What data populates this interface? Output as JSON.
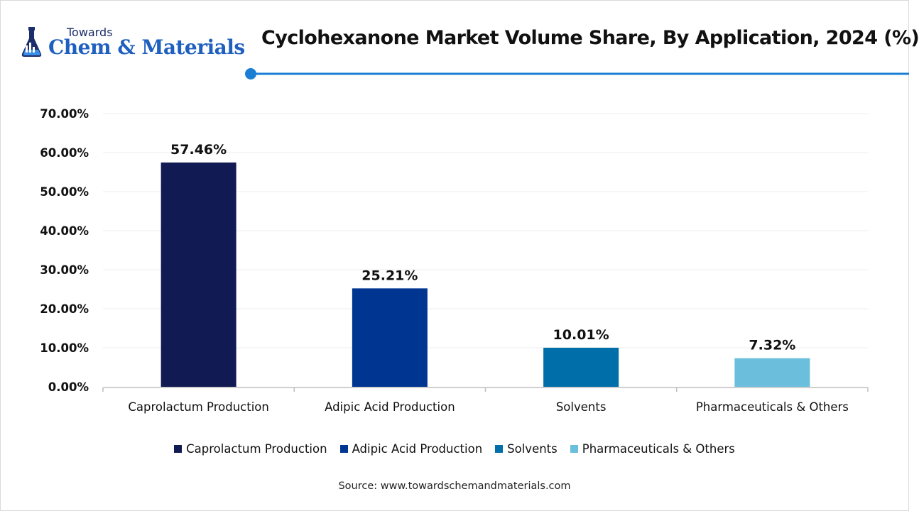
{
  "brand": {
    "logo_small": "Towards",
    "logo_big": "Chem & Materials"
  },
  "colors": {
    "title_rule": "#1a7fd4",
    "grid": "#ececec",
    "axis": "#bfbfbf"
  },
  "icons": [
    "flask-icon"
  ],
  "chart_data": {
    "type": "bar",
    "title": "Cyclohexanone Market Volume Share, By Application, 2024 (%)",
    "xlabel": "",
    "ylabel": "",
    "categories": [
      "Caprolactum Production",
      "Adipic Acid Production",
      "Solvents",
      "Pharmaceuticals & Others"
    ],
    "values": [
      57.46,
      25.21,
      10.01,
      7.32
    ],
    "data_labels": [
      "57.46%",
      "25.21%",
      "10.01%",
      "7.32%"
    ],
    "colors": [
      "#111a52",
      "#003591",
      "#006ea8",
      "#6cbfdc"
    ],
    "ylim": [
      0,
      70
    ],
    "yticks": [
      0,
      10,
      20,
      30,
      40,
      50,
      60,
      70
    ],
    "ytick_labels": [
      "0.00%",
      "10.00%",
      "20.00%",
      "30.00%",
      "40.00%",
      "50.00%",
      "60.00%",
      "70.00%"
    ],
    "grid": true,
    "legend_position": "bottom"
  },
  "source": "Source: www.towardschemandmaterials.com"
}
